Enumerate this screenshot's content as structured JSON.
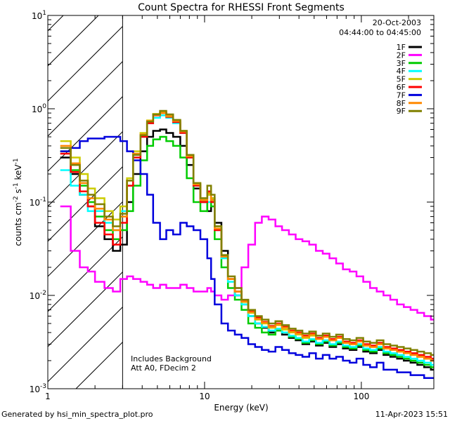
{
  "chart_data": {
    "type": "line",
    "title": "Count Spectra for RHESSI Front Segments",
    "xlabel": "Energy (keV)",
    "ylabel": "counts cm",
    "ylabel_sup1": "-2",
    "ylabel_s": " s",
    "ylabel_sup2": "-1",
    "ylabel_kev": " keV",
    "ylabel_sup3": "-1",
    "xscale": "log",
    "yscale": "log",
    "xlim": [
      1,
      290
    ],
    "ylim": [
      0.001,
      10
    ],
    "x_ticks": [
      {
        "value": 1,
        "label": "1"
      },
      {
        "value": 10,
        "label": "10"
      },
      {
        "value": 100,
        "label": "100"
      }
    ],
    "y_ticks": [
      {
        "value": 0.001,
        "base": "10",
        "exp": "-3"
      },
      {
        "value": 0.01,
        "base": "10",
        "exp": "-2"
      },
      {
        "value": 0.1,
        "base": "10",
        "exp": "-1"
      },
      {
        "value": 1,
        "base": "10",
        "exp": "0"
      },
      {
        "value": 10,
        "base": "10",
        "exp": "1"
      }
    ],
    "hatched_region": [
      1,
      3
    ],
    "date_label": "20-Oct-2003",
    "time_range": "04:44:00 to 04:45:00",
    "annotation_lines": [
      "Includes Background",
      "Att A0, FDecim 2"
    ],
    "footer_left": "Generated by hsi_min_spectra_plot.pro",
    "footer_right": "11-Apr-2023 15:51",
    "legend_position": "top-right",
    "series": [
      {
        "name": "1F",
        "color": "#000000",
        "x": [
          1.2,
          1.4,
          1.6,
          1.8,
          2.0,
          2.3,
          2.6,
          2.9,
          3.2,
          3.5,
          3.9,
          4.3,
          4.7,
          5.2,
          5.7,
          6.3,
          7.0,
          7.7,
          8.5,
          9.4,
          10.4,
          11.0,
          11.6,
          12.8,
          14.1,
          15.6,
          17.2,
          19.0,
          21.0,
          23.2,
          25.6,
          28.3,
          31.2,
          34.5,
          38.1,
          42.1,
          46.5,
          51.3,
          56.7,
          62.6,
          69.1,
          76.3,
          84.3,
          93.1,
          102.8,
          113.6,
          125.4,
          138.5,
          153.0,
          169.0,
          186.6,
          206.1,
          227.6,
          251.4,
          277.7
        ],
        "y": [
          0.3,
          0.2,
          0.12,
          0.09,
          0.055,
          0.04,
          0.03,
          0.035,
          0.1,
          0.2,
          0.35,
          0.5,
          0.58,
          0.6,
          0.55,
          0.5,
          0.4,
          0.25,
          0.14,
          0.1,
          0.08,
          0.11,
          0.06,
          0.03,
          0.015,
          0.01,
          0.008,
          0.006,
          0.005,
          0.0045,
          0.004,
          0.0042,
          0.0038,
          0.0035,
          0.0033,
          0.003,
          0.0032,
          0.0029,
          0.0031,
          0.0028,
          0.003,
          0.0027,
          0.0026,
          0.0028,
          0.0025,
          0.0024,
          0.0026,
          0.0023,
          0.0022,
          0.0021,
          0.002,
          0.0019,
          0.0018,
          0.0017,
          0.0016
        ]
      },
      {
        "name": "2F",
        "color": "#ff00ff",
        "x": [
          1.2,
          1.4,
          1.6,
          1.8,
          2.0,
          2.3,
          2.6,
          2.9,
          3.2,
          3.5,
          3.9,
          4.3,
          4.7,
          5.2,
          5.7,
          6.3,
          7.0,
          7.7,
          8.5,
          9.4,
          10.4,
          11.0,
          11.6,
          12.8,
          14.1,
          15.6,
          17.2,
          19.0,
          21.0,
          23.2,
          25.6,
          28.3,
          31.2,
          34.5,
          38.1,
          42.1,
          46.5,
          51.3,
          56.7,
          62.6,
          69.1,
          76.3,
          84.3,
          93.1,
          102.8,
          113.6,
          125.4,
          138.5,
          153.0,
          169.0,
          186.6,
          206.1,
          227.6,
          251.4,
          277.7
        ],
        "y": [
          0.09,
          0.03,
          0.02,
          0.018,
          0.014,
          0.012,
          0.011,
          0.015,
          0.016,
          0.015,
          0.014,
          0.013,
          0.012,
          0.013,
          0.012,
          0.012,
          0.013,
          0.012,
          0.011,
          0.011,
          0.012,
          0.011,
          0.01,
          0.009,
          0.01,
          0.012,
          0.02,
          0.035,
          0.06,
          0.07,
          0.065,
          0.055,
          0.05,
          0.045,
          0.04,
          0.038,
          0.035,
          0.03,
          0.028,
          0.025,
          0.022,
          0.019,
          0.018,
          0.016,
          0.014,
          0.012,
          0.011,
          0.01,
          0.009,
          0.008,
          0.0075,
          0.007,
          0.0065,
          0.006,
          0.0055
        ]
      },
      {
        "name": "3F",
        "color": "#00cc00",
        "x": [
          1.2,
          1.4,
          1.6,
          1.8,
          2.0,
          2.3,
          2.6,
          2.9,
          3.2,
          3.5,
          3.9,
          4.3,
          4.7,
          5.2,
          5.7,
          6.3,
          7.0,
          7.7,
          8.5,
          9.4,
          10.4,
          11.0,
          11.6,
          12.8,
          14.1,
          15.6,
          17.2,
          19.0,
          21.0,
          23.2,
          25.6,
          28.3,
          31.2,
          34.5,
          38.1,
          42.1,
          46.5,
          51.3,
          56.7,
          62.6,
          69.1,
          76.3,
          84.3,
          93.1,
          102.8,
          113.6,
          125.4,
          138.5,
          153.0,
          169.0,
          186.6,
          206.1,
          227.6,
          251.4,
          277.7
        ],
        "y": [
          0.35,
          0.22,
          0.15,
          0.1,
          0.07,
          0.05,
          0.04,
          0.05,
          0.08,
          0.15,
          0.28,
          0.4,
          0.47,
          0.5,
          0.45,
          0.4,
          0.3,
          0.18,
          0.1,
          0.08,
          0.12,
          0.09,
          0.04,
          0.02,
          0.012,
          0.009,
          0.007,
          0.005,
          0.0045,
          0.004,
          0.0038,
          0.0042,
          0.004,
          0.0036,
          0.0034,
          0.0031,
          0.0033,
          0.003,
          0.0032,
          0.0029,
          0.0031,
          0.0028,
          0.0027,
          0.0029,
          0.0026,
          0.0025,
          0.0027,
          0.0024,
          0.0023,
          0.0022,
          0.0021,
          0.002,
          0.0019,
          0.0018,
          0.0017
        ]
      },
      {
        "name": "4F",
        "color": "#00ffff",
        "x": [
          1.2,
          1.4,
          1.6,
          1.8,
          2.0,
          2.3,
          2.6,
          2.9,
          3.2,
          3.5,
          3.9,
          4.3,
          4.7,
          5.2,
          5.7,
          6.3,
          7.0,
          7.7,
          8.5,
          9.4,
          10.4,
          11.0,
          11.6,
          12.8,
          14.1,
          15.6,
          17.2,
          19.0,
          21.0,
          23.2,
          25.6,
          28.3,
          31.2,
          34.5,
          38.1,
          42.1,
          46.5,
          51.3,
          56.7,
          62.6,
          69.1,
          76.3,
          84.3,
          93.1,
          102.8,
          113.6,
          125.4,
          138.5,
          153.0,
          169.0,
          186.6,
          206.1,
          227.6,
          251.4,
          277.7
        ],
        "y": [
          0.22,
          0.15,
          0.12,
          0.08,
          0.08,
          0.06,
          0.05,
          0.08,
          0.15,
          0.3,
          0.5,
          0.7,
          0.8,
          0.85,
          0.8,
          0.7,
          0.55,
          0.3,
          0.15,
          0.1,
          0.1,
          0.1,
          0.05,
          0.025,
          0.014,
          0.01,
          0.008,
          0.006,
          0.005,
          0.0046,
          0.0042,
          0.0044,
          0.004,
          0.0037,
          0.0035,
          0.0032,
          0.0034,
          0.0031,
          0.0033,
          0.003,
          0.0032,
          0.0029,
          0.0028,
          0.003,
          0.0027,
          0.0026,
          0.0028,
          0.0025,
          0.0024,
          0.0023,
          0.0022,
          0.0021,
          0.002,
          0.0019,
          0.0018
        ]
      },
      {
        "name": "5F",
        "color": "#cccc00",
        "x": [
          1.2,
          1.4,
          1.6,
          1.8,
          2.0,
          2.3,
          2.6,
          2.9,
          3.2,
          3.5,
          3.9,
          4.3,
          4.7,
          5.2,
          5.7,
          6.3,
          7.0,
          7.7,
          8.5,
          9.4,
          10.4,
          11.0,
          11.6,
          12.8,
          14.1,
          15.6,
          17.2,
          19.0,
          21.0,
          23.2,
          25.6,
          28.3,
          31.2,
          34.5,
          38.1,
          42.1,
          46.5,
          51.3,
          56.7,
          62.6,
          69.1,
          76.3,
          84.3,
          93.1,
          102.8,
          113.6,
          125.4,
          138.5,
          153.0,
          169.0,
          186.6,
          206.1,
          227.6,
          251.4,
          277.7
        ],
        "y": [
          0.45,
          0.3,
          0.2,
          0.14,
          0.11,
          0.08,
          0.065,
          0.09,
          0.18,
          0.35,
          0.55,
          0.75,
          0.88,
          0.92,
          0.85,
          0.75,
          0.58,
          0.32,
          0.16,
          0.11,
          0.12,
          0.11,
          0.055,
          0.027,
          0.015,
          0.011,
          0.0085,
          0.0065,
          0.0055,
          0.005,
          0.0045,
          0.0048,
          0.0043,
          0.004,
          0.0038,
          0.0035,
          0.0037,
          0.0034,
          0.0036,
          0.0033,
          0.0035,
          0.0031,
          0.003,
          0.0032,
          0.0029,
          0.0028,
          0.003,
          0.0027,
          0.0026,
          0.0025,
          0.0024,
          0.0023,
          0.0022,
          0.0021,
          0.002
        ]
      },
      {
        "name": "6F",
        "color": "#ff0000",
        "x": [
          1.2,
          1.4,
          1.6,
          1.8,
          2.0,
          2.3,
          2.6,
          2.9,
          3.2,
          3.5,
          3.9,
          4.3,
          4.7,
          5.2,
          5.7,
          6.3,
          7.0,
          7.7,
          8.5,
          9.4,
          10.4,
          11.0,
          11.6,
          12.8,
          14.1,
          15.6,
          17.2,
          19.0,
          21.0,
          23.2,
          25.6,
          28.3,
          31.2,
          34.5,
          38.1,
          42.1,
          46.5,
          51.3,
          56.7,
          62.6,
          69.1,
          76.3,
          84.3,
          93.1,
          102.8,
          113.6,
          125.4,
          138.5,
          153.0,
          169.0,
          186.6,
          206.1,
          227.6,
          251.4,
          277.7
        ],
        "y": [
          0.33,
          0.21,
          0.13,
          0.09,
          0.06,
          0.045,
          0.035,
          0.06,
          0.15,
          0.3,
          0.5,
          0.7,
          0.85,
          0.9,
          0.82,
          0.72,
          0.55,
          0.3,
          0.15,
          0.1,
          0.13,
          0.1,
          0.05,
          0.026,
          0.015,
          0.011,
          0.0088,
          0.0068,
          0.0058,
          0.0052,
          0.0047,
          0.005,
          0.0046,
          0.0042,
          0.004,
          0.0037,
          0.0039,
          0.0035,
          0.0037,
          0.0034,
          0.0036,
          0.0032,
          0.0031,
          0.0033,
          0.003,
          0.0029,
          0.0031,
          0.0028,
          0.0027,
          0.0026,
          0.0025,
          0.0024,
          0.0023,
          0.0022,
          0.0021
        ]
      },
      {
        "name": "7F",
        "color": "#0000dd",
        "x": [
          1.2,
          1.4,
          1.6,
          1.8,
          2.0,
          2.3,
          2.6,
          2.9,
          3.2,
          3.5,
          3.9,
          4.3,
          4.7,
          5.2,
          5.7,
          6.3,
          7.0,
          7.7,
          8.5,
          9.4,
          10.4,
          11.0,
          11.6,
          12.8,
          14.1,
          15.6,
          17.2,
          19.0,
          21.0,
          23.2,
          25.6,
          28.3,
          31.2,
          34.5,
          38.1,
          42.1,
          46.5,
          51.3,
          56.7,
          62.6,
          69.1,
          76.3,
          84.3,
          93.1,
          102.8,
          113.6,
          125.4,
          138.5,
          153.0,
          169.0,
          186.6,
          206.1,
          227.6,
          251.4,
          277.7
        ],
        "y": [
          0.35,
          0.38,
          0.45,
          0.48,
          0.48,
          0.5,
          0.5,
          0.45,
          0.35,
          0.28,
          0.2,
          0.12,
          0.06,
          0.04,
          0.05,
          0.045,
          0.06,
          0.055,
          0.05,
          0.04,
          0.025,
          0.015,
          0.008,
          0.005,
          0.0042,
          0.0038,
          0.0035,
          0.003,
          0.0028,
          0.0026,
          0.0025,
          0.0028,
          0.0026,
          0.0024,
          0.0023,
          0.0022,
          0.0024,
          0.0021,
          0.0023,
          0.0021,
          0.0022,
          0.002,
          0.0019,
          0.0021,
          0.0018,
          0.0017,
          0.0019,
          0.0016,
          0.0016,
          0.0015,
          0.0015,
          0.0014,
          0.0014,
          0.0013,
          0.0013
        ]
      },
      {
        "name": "8F",
        "color": "#ff8800",
        "x": [
          1.2,
          1.4,
          1.6,
          1.8,
          2.0,
          2.3,
          2.6,
          2.9,
          3.2,
          3.5,
          3.9,
          4.3,
          4.7,
          5.2,
          5.7,
          6.3,
          7.0,
          7.7,
          8.5,
          9.4,
          10.4,
          11.0,
          11.6,
          12.8,
          14.1,
          15.6,
          17.2,
          19.0,
          21.0,
          23.2,
          25.6,
          28.3,
          31.2,
          34.5,
          38.1,
          42.1,
          46.5,
          51.3,
          56.7,
          62.6,
          69.1,
          76.3,
          84.3,
          93.1,
          102.8,
          113.6,
          125.4,
          138.5,
          153.0,
          169.0,
          186.6,
          206.1,
          227.6,
          251.4,
          277.7
        ],
        "y": [
          0.4,
          0.26,
          0.16,
          0.11,
          0.085,
          0.065,
          0.05,
          0.07,
          0.17,
          0.33,
          0.53,
          0.74,
          0.86,
          0.9,
          0.83,
          0.74,
          0.57,
          0.31,
          0.155,
          0.105,
          0.125,
          0.105,
          0.052,
          0.026,
          0.015,
          0.011,
          0.0086,
          0.0066,
          0.0056,
          0.0051,
          0.0046,
          0.0049,
          0.0045,
          0.0041,
          0.0039,
          0.0036,
          0.0038,
          0.0034,
          0.0036,
          0.0033,
          0.0035,
          0.0031,
          0.003,
          0.0032,
          0.0029,
          0.0028,
          0.003,
          0.0027,
          0.0026,
          0.0025,
          0.0024,
          0.0023,
          0.0022,
          0.0021,
          0.002
        ]
      },
      {
        "name": "9F",
        "color": "#808000",
        "x": [
          1.2,
          1.4,
          1.6,
          1.8,
          2.0,
          2.3,
          2.6,
          2.9,
          3.2,
          3.5,
          3.9,
          4.3,
          4.7,
          5.2,
          5.7,
          6.3,
          7.0,
          7.7,
          8.5,
          9.4,
          10.4,
          11.0,
          11.6,
          12.8,
          14.1,
          15.6,
          17.2,
          19.0,
          21.0,
          23.2,
          25.6,
          28.3,
          31.2,
          34.5,
          38.1,
          42.1,
          46.5,
          51.3,
          56.7,
          62.6,
          69.1,
          76.3,
          84.3,
          93.1,
          102.8,
          113.6,
          125.4,
          138.5,
          153.0,
          169.0,
          186.6,
          206.1,
          227.6,
          251.4,
          277.7
        ],
        "y": [
          0.38,
          0.25,
          0.17,
          0.12,
          0.095,
          0.07,
          0.055,
          0.075,
          0.17,
          0.32,
          0.52,
          0.73,
          0.87,
          0.95,
          0.87,
          0.76,
          0.58,
          0.32,
          0.16,
          0.11,
          0.15,
          0.12,
          0.055,
          0.027,
          0.016,
          0.012,
          0.009,
          0.007,
          0.006,
          0.0055,
          0.005,
          0.0053,
          0.0048,
          0.0044,
          0.0042,
          0.0039,
          0.0041,
          0.0037,
          0.0039,
          0.0036,
          0.0038,
          0.0034,
          0.0033,
          0.0035,
          0.0032,
          0.0031,
          0.0033,
          0.003,
          0.0029,
          0.0028,
          0.0027,
          0.0026,
          0.0025,
          0.0024,
          0.0023
        ]
      }
    ]
  }
}
